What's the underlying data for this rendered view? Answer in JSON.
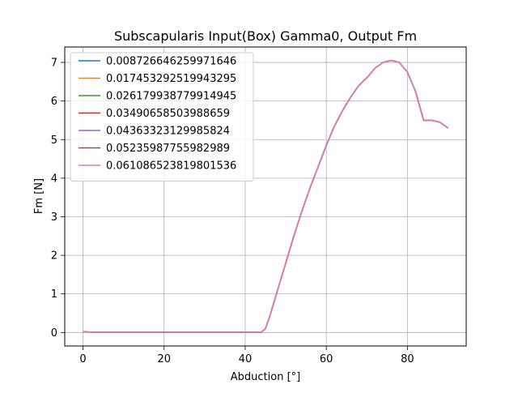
{
  "chart_data": {
    "type": "line",
    "title": "Subscapularis Input(Box) Gamma0, Output Fm",
    "xlabel": "Abduction [°]",
    "ylabel": "Fm [N]",
    "xlim": [
      -4.5,
      94.5
    ],
    "ylim": [
      -0.35,
      7.4
    ],
    "x_ticks": [
      0,
      20,
      40,
      60,
      80
    ],
    "y_ticks": [
      0,
      1,
      2,
      3,
      4,
      5,
      6,
      7
    ],
    "grid": true,
    "legend_position": "top-left",
    "x": [
      0,
      2,
      4,
      6,
      8,
      10,
      12,
      14,
      16,
      18,
      20,
      22,
      24,
      26,
      28,
      30,
      32,
      34,
      36,
      38,
      40,
      42,
      44,
      45,
      46,
      48,
      50,
      52,
      54,
      56,
      58,
      60,
      62,
      64,
      66,
      68,
      70,
      72,
      74,
      76,
      78,
      80,
      82,
      84,
      86,
      88,
      90
    ],
    "series": [
      {
        "name": "0.008726646259971646",
        "color": "#1f77b4",
        "values": [
          0.02,
          0.01,
          0.01,
          0.01,
          0.01,
          0.01,
          0.01,
          0.01,
          0.01,
          0.01,
          0.01,
          0.01,
          0.01,
          0.01,
          0.01,
          0.01,
          0.01,
          0.01,
          0.01,
          0.01,
          0.01,
          0.01,
          0.01,
          0.1,
          0.4,
          1.1,
          1.8,
          2.5,
          3.15,
          3.75,
          4.3,
          4.85,
          5.35,
          5.75,
          6.1,
          6.4,
          6.6,
          6.85,
          7.0,
          7.05,
          7.0,
          6.75,
          6.25,
          5.5,
          5.5,
          5.45,
          5.3
        ]
      },
      {
        "name": "0.017453292519943295",
        "color": "#ff7f0e",
        "values": [
          0.02,
          0.01,
          0.01,
          0.01,
          0.01,
          0.01,
          0.01,
          0.01,
          0.01,
          0.01,
          0.01,
          0.01,
          0.01,
          0.01,
          0.01,
          0.01,
          0.01,
          0.01,
          0.01,
          0.01,
          0.01,
          0.01,
          0.01,
          0.1,
          0.4,
          1.1,
          1.8,
          2.5,
          3.15,
          3.75,
          4.3,
          4.85,
          5.35,
          5.75,
          6.1,
          6.4,
          6.6,
          6.85,
          7.0,
          7.05,
          7.0,
          6.75,
          6.25,
          5.5,
          5.5,
          5.45,
          5.3
        ]
      },
      {
        "name": "0.026179938779914945",
        "color": "#2ca02c",
        "values": [
          0.02,
          0.01,
          0.01,
          0.01,
          0.01,
          0.01,
          0.01,
          0.01,
          0.01,
          0.01,
          0.01,
          0.01,
          0.01,
          0.01,
          0.01,
          0.01,
          0.01,
          0.01,
          0.01,
          0.01,
          0.01,
          0.01,
          0.01,
          0.1,
          0.4,
          1.1,
          1.8,
          2.5,
          3.15,
          3.75,
          4.3,
          4.85,
          5.35,
          5.75,
          6.1,
          6.4,
          6.6,
          6.85,
          7.0,
          7.05,
          7.0,
          6.75,
          6.25,
          5.5,
          5.5,
          5.45,
          5.3
        ]
      },
      {
        "name": "0.03490658503988659",
        "color": "#d62728",
        "values": [
          0.02,
          0.01,
          0.01,
          0.01,
          0.01,
          0.01,
          0.01,
          0.01,
          0.01,
          0.01,
          0.01,
          0.01,
          0.01,
          0.01,
          0.01,
          0.01,
          0.01,
          0.01,
          0.01,
          0.01,
          0.01,
          0.01,
          0.01,
          0.1,
          0.4,
          1.1,
          1.8,
          2.5,
          3.15,
          3.75,
          4.3,
          4.85,
          5.35,
          5.75,
          6.1,
          6.4,
          6.6,
          6.85,
          7.0,
          7.05,
          7.0,
          6.75,
          6.25,
          5.5,
          5.5,
          5.45,
          5.3
        ]
      },
      {
        "name": "0.04363323129985824",
        "color": "#9467bd",
        "values": [
          0.02,
          0.01,
          0.01,
          0.01,
          0.01,
          0.01,
          0.01,
          0.01,
          0.01,
          0.01,
          0.01,
          0.01,
          0.01,
          0.01,
          0.01,
          0.01,
          0.01,
          0.01,
          0.01,
          0.01,
          0.01,
          0.01,
          0.01,
          0.1,
          0.4,
          1.1,
          1.8,
          2.5,
          3.15,
          3.75,
          4.3,
          4.85,
          5.35,
          5.75,
          6.1,
          6.4,
          6.6,
          6.85,
          7.0,
          7.05,
          7.0,
          6.75,
          6.25,
          5.5,
          5.5,
          5.45,
          5.3
        ]
      },
      {
        "name": "0.05235987755982989",
        "color": "#8c564b",
        "values": [
          0.02,
          0.01,
          0.01,
          0.01,
          0.01,
          0.01,
          0.01,
          0.01,
          0.01,
          0.01,
          0.01,
          0.01,
          0.01,
          0.01,
          0.01,
          0.01,
          0.01,
          0.01,
          0.01,
          0.01,
          0.01,
          0.01,
          0.01,
          0.1,
          0.4,
          1.1,
          1.8,
          2.5,
          3.15,
          3.75,
          4.3,
          4.85,
          5.35,
          5.75,
          6.1,
          6.4,
          6.6,
          6.85,
          7.0,
          7.05,
          7.0,
          6.75,
          6.25,
          5.5,
          5.5,
          5.45,
          5.3
        ]
      },
      {
        "name": "0.061086523819801536",
        "color": "#e377c2",
        "values": [
          0.02,
          0.01,
          0.01,
          0.01,
          0.01,
          0.01,
          0.01,
          0.01,
          0.01,
          0.01,
          0.01,
          0.01,
          0.01,
          0.01,
          0.01,
          0.01,
          0.01,
          0.01,
          0.01,
          0.01,
          0.01,
          0.01,
          0.01,
          0.1,
          0.4,
          1.1,
          1.8,
          2.5,
          3.15,
          3.75,
          4.3,
          4.85,
          5.35,
          5.75,
          6.1,
          6.4,
          6.6,
          6.85,
          7.0,
          7.05,
          7.0,
          6.75,
          6.25,
          5.5,
          5.5,
          5.45,
          5.3
        ]
      }
    ]
  }
}
